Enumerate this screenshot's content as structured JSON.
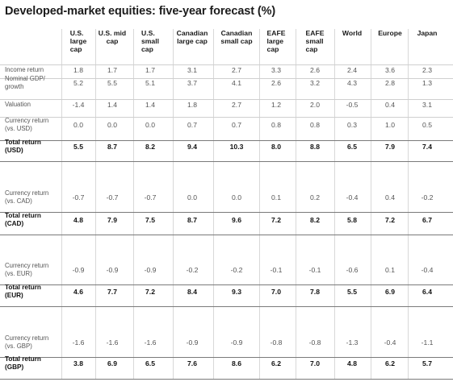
{
  "title": "Developed-market equities: five-year forecast (%)",
  "columns": [
    "U.S.\nlarge\ncap",
    "U.S. mid\ncap",
    "U.S.\nsmall\ncap",
    "Canadian\nlarge cap",
    "Canadian\nsmall cap",
    "EAFE\nlarge\ncap",
    "EAFE\nsmall\ncap",
    "World",
    "Europe",
    "Japan"
  ],
  "rows": [
    {
      "label": "Income return",
      "bold": false,
      "values": [
        "1.8",
        "1.7",
        "1.7",
        "3.1",
        "2.7",
        "3.3",
        "2.6",
        "2.4",
        "3.6",
        "2.3"
      ]
    },
    {
      "label": "Nominal GDP/\ngrowth",
      "bold": false,
      "values": [
        "5.2",
        "5.5",
        "5.1",
        "3.7",
        "4.1",
        "2.6",
        "3.2",
        "4.3",
        "2.8",
        "1.3"
      ]
    },
    {
      "label": "Valuation",
      "bold": false,
      "values": [
        "-1.4",
        "1.4",
        "1.4",
        "1.8",
        "2.7",
        "1.2",
        "2.0",
        "-0.5",
        "0.4",
        "3.1"
      ]
    },
    {
      "label": "Currency return\n(vs. USD)",
      "bold": false,
      "values": [
        "0.0",
        "0.0",
        "0.0",
        "0.7",
        "0.7",
        "0.8",
        "0.8",
        "0.3",
        "1.0",
        "0.5"
      ]
    },
    {
      "label": "Total return\n(USD)",
      "bold": true,
      "values": [
        "5.5",
        "8.7",
        "8.2",
        "9.4",
        "10.3",
        "8.0",
        "8.8",
        "6.5",
        "7.9",
        "7.4"
      ]
    },
    {
      "label": "Currency return\n(vs. CAD)",
      "bold": false,
      "values": [
        "-0.7",
        "-0.7",
        "-0.7",
        "0.0",
        "0.0",
        "0.1",
        "0.2",
        "-0.4",
        "0.4",
        "-0.2"
      ]
    },
    {
      "label": "Total return\n(CAD)",
      "bold": true,
      "values": [
        "4.8",
        "7.9",
        "7.5",
        "8.7",
        "9.6",
        "7.2",
        "8.2",
        "5.8",
        "7.2",
        "6.7"
      ]
    },
    {
      "label": "Currency return\n(vs. EUR)",
      "bold": false,
      "values": [
        "-0.9",
        "-0.9",
        "-0.9",
        "-0.2",
        "-0.2",
        "-0.1",
        "-0.1",
        "-0.6",
        "0.1",
        "-0.4"
      ]
    },
    {
      "label": "Total return\n(EUR)",
      "bold": true,
      "values": [
        "4.6",
        "7.7",
        "7.2",
        "8.4",
        "9.3",
        "7.0",
        "7.8",
        "5.5",
        "6.9",
        "6.4"
      ]
    },
    {
      "label": "Currency return\n(vs. GBP)",
      "bold": false,
      "values": [
        "-1.6",
        "-1.6",
        "-1.6",
        "-0.9",
        "-0.9",
        "-0.8",
        "-0.8",
        "-1.3",
        "-0.4",
        "-1.1"
      ]
    },
    {
      "label": "Total return\n(GBP)",
      "bold": true,
      "values": [
        "3.8",
        "6.9",
        "6.5",
        "7.6",
        "8.6",
        "6.2",
        "7.0",
        "4.8",
        "6.2",
        "5.7"
      ]
    }
  ]
}
